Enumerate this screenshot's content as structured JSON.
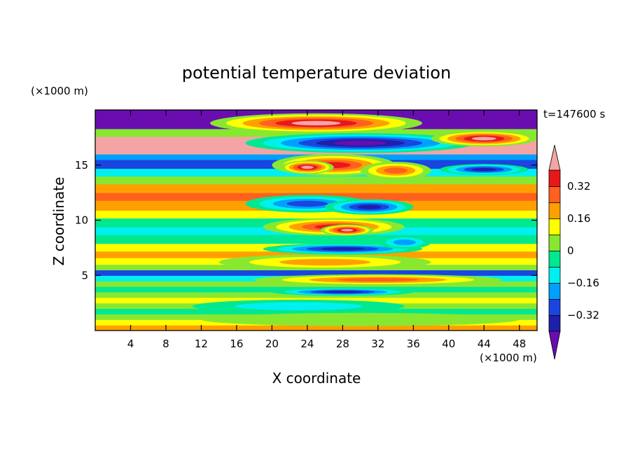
{
  "chart_data": {
    "type": "heatmap",
    "title": "potential temperature deviation",
    "xlabel": "X coordinate",
    "ylabel": "Z coordinate",
    "x_unit": "(×1000 m)",
    "y_unit": "(×1000 m)",
    "time_label": "t=147600 s",
    "xlim": [
      0,
      50
    ],
    "ylim": [
      0,
      20
    ],
    "x_ticks": [
      4,
      8,
      12,
      16,
      20,
      24,
      28,
      32,
      36,
      40,
      44,
      48
    ],
    "x_tick_labels": [
      "4",
      "8",
      "12",
      "16",
      "20",
      "24",
      "28",
      "32",
      "36",
      "40",
      "44",
      "48"
    ],
    "y_ticks": [
      5,
      10,
      15
    ],
    "y_tick_labels": [
      "5",
      "10",
      "15"
    ],
    "grid": false,
    "colorbar": {
      "placement": "right",
      "levels": [
        -0.4,
        -0.32,
        -0.24,
        -0.16,
        -0.08,
        0,
        0.08,
        0.16,
        0.24,
        0.32,
        0.4
      ],
      "colors": [
        "#6a0db0",
        "#1f1faa",
        "#1a45e0",
        "#00a0ff",
        "#00f0f0",
        "#00e890",
        "#88e830",
        "#ffff00",
        "#ffa000",
        "#ff6020",
        "#e81818",
        "#f4a4a4"
      ],
      "tick_values": [
        0.32,
        0.16,
        0,
        -0.16,
        -0.32
      ],
      "tick_labels": [
        "0.32",
        "0.16",
        "0",
        "−0.16",
        "−0.32"
      ]
    },
    "background_bands": [
      {
        "z": [
          0.0,
          0.5
        ],
        "value": 0.2
      },
      {
        "z": [
          0.5,
          1.0
        ],
        "value": 0.12
      },
      {
        "z": [
          1.0,
          1.5
        ],
        "value": 0.04
      },
      {
        "z": [
          1.5,
          2.0
        ],
        "value": -0.04
      },
      {
        "z": [
          2.0,
          2.5
        ],
        "value": 0.04
      },
      {
        "z": [
          2.5,
          3.0
        ],
        "value": 0.12
      },
      {
        "z": [
          3.0,
          3.5
        ],
        "value": 0.04
      },
      {
        "z": [
          3.5,
          4.0
        ],
        "value": -0.04
      },
      {
        "z": [
          4.0,
          4.5
        ],
        "value": 0.04
      },
      {
        "z": [
          4.5,
          5.0
        ],
        "value": -0.12
      },
      {
        "z": [
          5.0,
          5.5
        ],
        "value": -0.28
      },
      {
        "z": [
          5.5,
          6.0
        ],
        "value": 0.04
      },
      {
        "z": [
          6.0,
          6.6
        ],
        "value": 0.12
      },
      {
        "z": [
          6.6,
          7.2
        ],
        "value": 0.2
      },
      {
        "z": [
          7.2,
          7.9
        ],
        "value": 0.12
      },
      {
        "z": [
          7.9,
          8.7
        ],
        "value": -0.04
      },
      {
        "z": [
          8.7,
          9.4
        ],
        "value": -0.12
      },
      {
        "z": [
          9.4,
          10.2
        ],
        "value": -0.04
      },
      {
        "z": [
          10.2,
          10.9
        ],
        "value": 0.12
      },
      {
        "z": [
          10.9,
          11.8
        ],
        "value": 0.2
      },
      {
        "z": [
          11.8,
          12.5
        ],
        "value": 0.28
      },
      {
        "z": [
          12.5,
          13.3
        ],
        "value": 0.2
      },
      {
        "z": [
          13.3,
          14.0
        ],
        "value": 0.04
      },
      {
        "z": [
          14.0,
          14.7
        ],
        "value": -0.12
      },
      {
        "z": [
          14.7,
          15.5
        ],
        "value": -0.28
      },
      {
        "z": [
          15.5,
          16.0
        ],
        "value": -0.2
      },
      {
        "z": [
          16.0,
          16.8
        ],
        "value": 0.44
      },
      {
        "z": [
          16.8,
          17.6
        ],
        "value": 0.44
      },
      {
        "z": [
          17.6,
          18.3
        ],
        "value": 0.04
      },
      {
        "z": [
          18.3,
          19.0
        ],
        "value": -0.44
      },
      {
        "z": [
          19.0,
          20.0
        ],
        "value": -0.44
      }
    ],
    "anomalies": [
      {
        "x": 25,
        "z": 18.8,
        "rx": 12,
        "rz": 0.9,
        "value": 0.44
      },
      {
        "x": 30,
        "z": 17.0,
        "rx": 13,
        "rz": 0.9,
        "value": -0.44
      },
      {
        "x": 44,
        "z": 17.4,
        "rx": 6,
        "rz": 0.7,
        "value": 0.44
      },
      {
        "x": 27,
        "z": 15.0,
        "rx": 7,
        "rz": 1.0,
        "value": 0.36
      },
      {
        "x": 24,
        "z": 14.8,
        "rx": 3,
        "rz": 0.6,
        "value": 0.44
      },
      {
        "x": 34,
        "z": 14.5,
        "rx": 4,
        "rz": 0.8,
        "value": 0.28
      },
      {
        "x": 44,
        "z": 14.6,
        "rx": 5,
        "rz": 0.5,
        "value": -0.36
      },
      {
        "x": 24,
        "z": 11.5,
        "rx": 7,
        "rz": 0.8,
        "value": -0.28
      },
      {
        "x": 31,
        "z": 11.2,
        "rx": 5,
        "rz": 0.7,
        "value": -0.36
      },
      {
        "x": 27,
        "z": 9.4,
        "rx": 8,
        "rz": 0.8,
        "value": 0.36
      },
      {
        "x": 28.5,
        "z": 9.1,
        "rx": 3,
        "rz": 0.5,
        "value": 0.44
      },
      {
        "x": 28,
        "z": 7.4,
        "rx": 9,
        "rz": 0.5,
        "value": -0.36
      },
      {
        "x": 35,
        "z": 8.0,
        "rx": 3,
        "rz": 0.6,
        "value": -0.2
      },
      {
        "x": 26,
        "z": 6.2,
        "rx": 12,
        "rz": 0.7,
        "value": 0.2
      },
      {
        "x": 32,
        "z": 4.6,
        "rx": 14,
        "rz": 0.5,
        "value": 0.28
      },
      {
        "x": 28,
        "z": 3.5,
        "rx": 8,
        "rz": 0.35,
        "value": -0.36
      },
      {
        "x": 23,
        "z": 2.2,
        "rx": 12,
        "rz": 0.6,
        "value": -0.12
      },
      {
        "x": 30,
        "z": 1.0,
        "rx": 18,
        "rz": 0.6,
        "value": 0.04
      }
    ]
  }
}
